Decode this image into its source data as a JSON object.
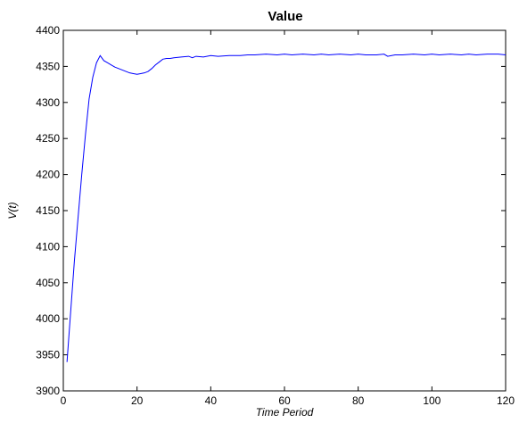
{
  "chart_data": {
    "type": "line",
    "title": "Value",
    "xlabel": "Time Period",
    "ylabel": "V(t)",
    "xlim": [
      0,
      120
    ],
    "ylim": [
      3900,
      4400
    ],
    "xticks": [
      0,
      20,
      40,
      60,
      80,
      100,
      120
    ],
    "yticks": [
      3900,
      3950,
      4000,
      4050,
      4100,
      4150,
      4200,
      4250,
      4300,
      4350,
      4400
    ],
    "grid": false,
    "line_color": "#0000ff",
    "series": [
      {
        "x": [
          1,
          1.5,
          2,
          3,
          4,
          5,
          6,
          7,
          8,
          9,
          10,
          11,
          12,
          13,
          14,
          15,
          16,
          17,
          18,
          19,
          20,
          21,
          22,
          23,
          24,
          25,
          26,
          27,
          28,
          29,
          30,
          32,
          34,
          35,
          36,
          38,
          40,
          42,
          45,
          48,
          50,
          52,
          55,
          58,
          60,
          62,
          65,
          68,
          70,
          72,
          75,
          78,
          80,
          82,
          85,
          87,
          88,
          90,
          92,
          95,
          98,
          100,
          102,
          105,
          108,
          110,
          112,
          115,
          118,
          120
        ],
        "y": [
          3940,
          3975,
          4010,
          4080,
          4140,
          4200,
          4255,
          4305,
          4335,
          4355,
          4365,
          4358,
          4355,
          4352,
          4349,
          4347,
          4345,
          4343,
          4341,
          4340,
          4339,
          4340,
          4341,
          4343,
          4347,
          4352,
          4356,
          4360,
          4361,
          4361,
          4362,
          4363,
          4364,
          4362,
          4364,
          4363,
          4365,
          4364,
          4365,
          4365,
          4366,
          4366,
          4367,
          4366,
          4367,
          4366,
          4367,
          4366,
          4367,
          4366,
          4367,
          4366,
          4367,
          4366,
          4366,
          4367,
          4364,
          4366,
          4366,
          4367,
          4366,
          4367,
          4366,
          4367,
          4366,
          4367,
          4366,
          4367,
          4367,
          4366
        ]
      }
    ]
  }
}
